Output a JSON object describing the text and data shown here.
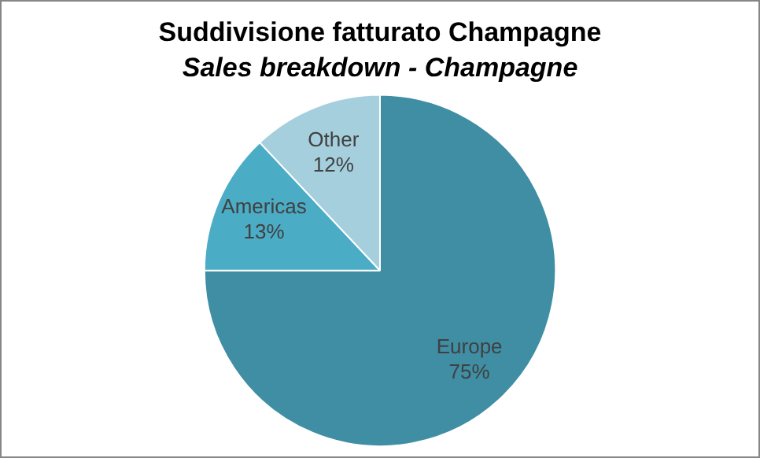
{
  "chart_data": {
    "type": "pie",
    "title": "Suddivisione fatturato Champagne",
    "subtitle": "Sales breakdown - Champagne",
    "categories": [
      "Europe",
      "Americas",
      "Other"
    ],
    "values": [
      75,
      13,
      12
    ],
    "value_labels": [
      "75%",
      "13%",
      "12%"
    ],
    "colors": [
      "#3f8ea4",
      "#4bacc6",
      "#a5cfdd"
    ],
    "legend": false
  }
}
